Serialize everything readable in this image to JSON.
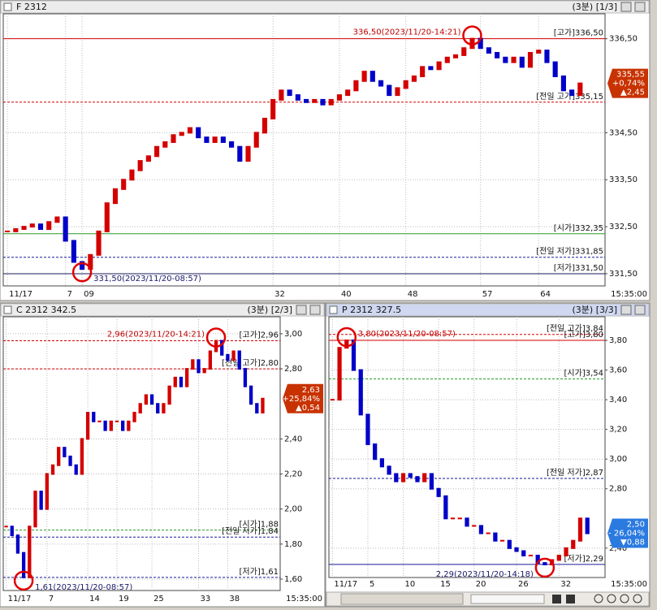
{
  "chart_data": [
    {
      "type": "candle",
      "title": "F 2312",
      "window": "(3분) [1/3]",
      "up_color": "#d40000",
      "down_color": "#0000c8",
      "values": [
        332.4,
        332.45,
        332.5,
        332.55,
        332.45,
        332.6,
        332.7,
        332.2,
        331.75,
        331.6,
        331.9,
        332.4,
        333.0,
        333.3,
        333.5,
        333.7,
        333.9,
        334.0,
        334.2,
        334.3,
        334.45,
        334.5,
        334.6,
        334.4,
        334.3,
        334.4,
        334.3,
        334.2,
        333.9,
        334.2,
        334.5,
        334.8,
        335.2,
        335.4,
        335.3,
        335.2,
        335.15,
        335.2,
        335.1,
        335.2,
        335.3,
        335.4,
        335.6,
        335.8,
        335.6,
        335.5,
        335.3,
        335.45,
        335.6,
        335.7,
        335.9,
        335.85,
        336.0,
        336.1,
        336.15,
        336.3,
        336.5,
        336.3,
        336.2,
        336.1,
        336.0,
        336.1,
        335.9,
        336.2,
        336.25,
        336.0,
        335.7,
        335.4,
        335.3,
        335.55
      ],
      "xlim": [
        -0.5,
        72
      ],
      "ylim": [
        331.24,
        337.03
      ],
      "yticks": [
        {
          "value": 331.5,
          "label": "331,50"
        },
        {
          "value": 332.5,
          "label": "332,50"
        },
        {
          "value": 333.5,
          "label": "333,50"
        },
        {
          "value": 334.5,
          "label": "334,50"
        },
        {
          "value": 336.5,
          "label": "336,50"
        }
      ],
      "xticks": [
        {
          "value": 0,
          "label": "11/17"
        },
        7,
        {
          "value": 9,
          "label": "09"
        },
        32,
        40,
        48,
        57,
        64
      ],
      "x_end_label": "15:35:00",
      "grid": true,
      "reference_lines": [
        {
          "label": "[고가]336,50",
          "value": 336.5,
          "color": "#d40000",
          "dashed": false
        },
        {
          "label": "[전일 고가]335,15",
          "value": 335.15,
          "color": "#d40000",
          "dashed": true
        },
        {
          "label": "[시가]332,35",
          "value": 332.35,
          "color": "#2a9a2a",
          "dashed": false
        },
        {
          "label": "[전일 저가]331,85",
          "value": 331.85,
          "color": "#1a1a9a",
          "dashed": true
        },
        {
          "label": "[저가]331,50",
          "value": 331.5,
          "color": "#1a1a5a",
          "dashed": false
        }
      ],
      "annotations": [
        "336,50(2023/11/20-14:21)",
        "331,50(2023/11/20-08:57)"
      ],
      "price_tag": {
        "lines": [
          "335,55",
          "+0,74%",
          "▲2,45"
        ],
        "color": "#c83200"
      }
    },
    {
      "type": "candle",
      "title": "C 2312 342.5",
      "window": "(3분) [2/3]",
      "up_color": "#d40000",
      "down_color": "#0000c8",
      "values": [
        1.9,
        1.85,
        1.75,
        1.61,
        1.9,
        2.1,
        2.0,
        2.2,
        2.25,
        2.35,
        2.3,
        2.25,
        2.2,
        2.4,
        2.55,
        2.5,
        2.5,
        2.45,
        2.5,
        2.5,
        2.45,
        2.5,
        2.55,
        2.6,
        2.65,
        2.6,
        2.55,
        2.6,
        2.7,
        2.75,
        2.7,
        2.8,
        2.85,
        2.78,
        2.8,
        2.9,
        2.96,
        2.88,
        2.85,
        2.9,
        2.8,
        2.7,
        2.6,
        2.55,
        2.63
      ],
      "xlim": [
        -0.5,
        47
      ],
      "ylim": [
        1.535,
        3.097
      ],
      "yticks": [
        {
          "value": 1.6,
          "label": "1,60"
        },
        {
          "value": 1.8,
          "label": "1,80"
        },
        {
          "value": 2.0,
          "label": "2,00"
        },
        {
          "value": 2.2,
          "label": "2,20"
        },
        {
          "value": 2.4,
          "label": "2,40"
        },
        {
          "value": 2.8,
          "label": "2,80"
        },
        {
          "value": 3.0,
          "label": "3,00"
        }
      ],
      "xticks": [
        {
          "value": 0,
          "label": "11/17"
        },
        7,
        14,
        19,
        25,
        33,
        38
      ],
      "x_end_label": "15:35:00",
      "grid": true,
      "reference_lines": [
        {
          "label": "[고가]2,96",
          "value": 2.96,
          "color": "#d40000",
          "dashed": true
        },
        {
          "label": "[전일 고가]2,80",
          "value": 2.8,
          "color": "#d40000",
          "dashed": true
        },
        {
          "label": "[시가]1,88",
          "value": 1.88,
          "color": "#2a9a2a",
          "dashed": true
        },
        {
          "label": "[전일 저가]1,84",
          "value": 1.84,
          "color": "#1a1a9a",
          "dashed": true
        },
        {
          "label": "[저가]1,61",
          "value": 1.61,
          "color": "#1a1a9a",
          "dashed": true
        }
      ],
      "annotations": [
        "2,96(2023/11/20-14:21)",
        "1,61(2023/11/20-08:57)"
      ],
      "price_tag": {
        "lines": [
          "2,63",
          "+25,84%",
          "▲0,54"
        ],
        "color": "#c83200"
      }
    },
    {
      "type": "candle",
      "title": "P 2312 327.5",
      "window": "(3분) [3/3]",
      "up_color": "#d40000",
      "down_color": "#0000c8",
      "values": [
        3.4,
        3.75,
        3.8,
        3.6,
        3.3,
        3.1,
        3.0,
        2.95,
        2.9,
        2.85,
        2.9,
        2.88,
        2.85,
        2.9,
        2.8,
        2.75,
        2.6,
        2.6,
        2.6,
        2.55,
        2.55,
        2.5,
        2.5,
        2.45,
        2.45,
        2.4,
        2.38,
        2.35,
        2.35,
        2.3,
        2.29,
        2.32,
        2.35,
        2.4,
        2.45,
        2.6,
        2.5
      ],
      "xlim": [
        -0.5,
        38.5
      ],
      "ylim": [
        2.202,
        3.959
      ],
      "yticks": [
        {
          "value": 2.4,
          "label": "2,40"
        },
        {
          "value": 2.8,
          "label": "2,80"
        },
        {
          "value": 3.0,
          "label": "3,00"
        },
        {
          "value": 3.2,
          "label": "3,20"
        },
        {
          "value": 3.4,
          "label": "3,40"
        },
        {
          "value": 3.6,
          "label": "3,60"
        },
        {
          "value": 3.8,
          "label": "3,80"
        }
      ],
      "xticks": [
        {
          "value": 0,
          "label": "11/17"
        },
        5,
        10,
        15,
        20,
        26,
        32
      ],
      "x_end_label": "15:35:00",
      "grid": true,
      "reference_lines": [
        {
          "label": "[전일 고가]3,84",
          "value": 3.84,
          "color": "#d40000",
          "dashed": true
        },
        {
          "label": "[고가]3,80",
          "value": 3.8,
          "color": "#d40000",
          "dashed": false
        },
        {
          "label": "[시가]3,54",
          "value": 3.54,
          "color": "#2a9a2a",
          "dashed": true
        },
        {
          "label": "[전일 저가]2,87",
          "value": 2.87,
          "color": "#1a1a9a",
          "dashed": true
        },
        {
          "label": "[저가]2,29",
          "value": 2.29,
          "color": "#1a1a9a",
          "dashed": false
        }
      ],
      "annotations": [
        "3,80(2023/11/20-08:57)",
        "2,29(2023/11/20-14:18)"
      ],
      "price_tag": {
        "lines": [
          "2,50",
          "- 26,04%",
          "▼0,88"
        ],
        "color": "#2a7ae0"
      }
    }
  ]
}
